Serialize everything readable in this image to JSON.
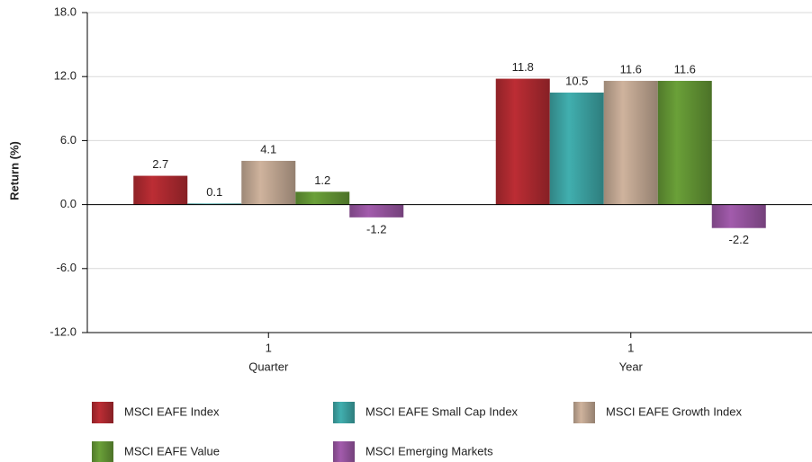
{
  "chart_data": {
    "type": "bar",
    "y_axis_label": "Return (%)",
    "categories": [
      [
        "1",
        "Quarter"
      ],
      [
        "1",
        "Year"
      ]
    ],
    "series": [
      {
        "name": "MSCI EAFE Index",
        "color": "#a8282e",
        "values": [
          2.7,
          11.8
        ]
      },
      {
        "name": "MSCI EAFE Small Cap Index",
        "color": "#3a9c9c",
        "values": [
          0.1,
          10.5
        ]
      },
      {
        "name": "MSCI EAFE Growth Index",
        "color": "#b9a08c",
        "values": [
          4.1,
          11.6
        ]
      },
      {
        "name": "MSCI EAFE Value",
        "color": "#5f8f32",
        "values": [
          1.2,
          11.6
        ]
      },
      {
        "name": "MSCI Emerging Markets",
        "color": "#91519a",
        "values": [
          -1.2,
          -2.2
        ]
      }
    ],
    "ylim": [
      -12,
      18
    ],
    "yticks": [
      {
        "value": -12,
        "label": "-12.0"
      },
      {
        "value": -6,
        "label": "-6.0"
      },
      {
        "value": 0,
        "label": "0.0"
      },
      {
        "value": 6,
        "label": "6.0"
      },
      {
        "value": 12,
        "label": "12.0"
      },
      {
        "value": 18,
        "label": "18.0"
      }
    ],
    "grid": true,
    "legend": "bottom"
  }
}
